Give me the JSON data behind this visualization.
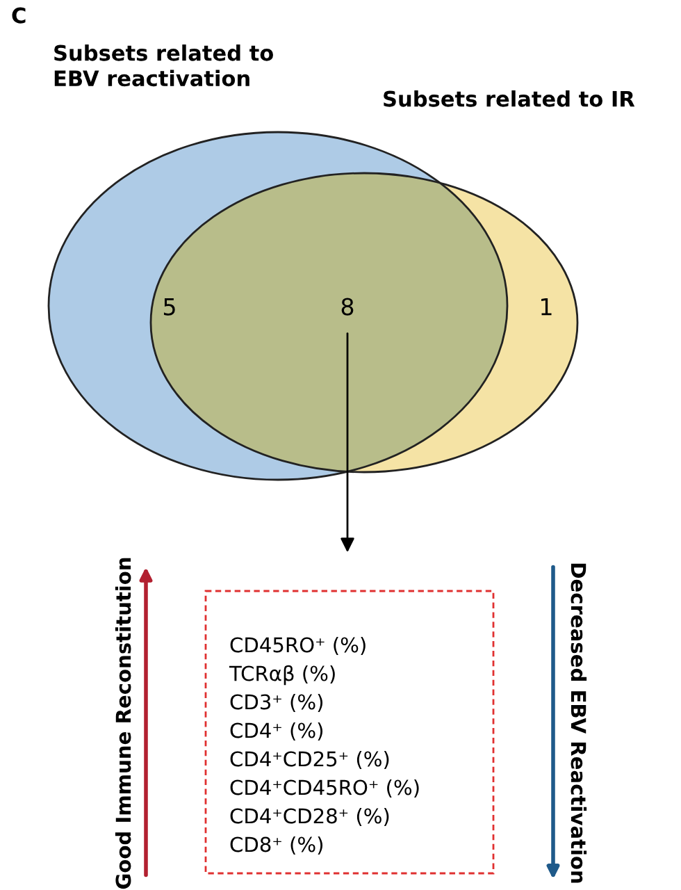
{
  "chart_data": {
    "type": "other",
    "title": "C",
    "categories": [
      null,
      null,
      null
    ],
    "colors": [
      "#aecbe6",
      "#b8bd8a",
      "#f5e3a5"
    ],
    "values": [
      5,
      8,
      1
    ],
    "data_labels": true,
    "annotations": [
      "Subsets related to\nEBV reactivation",
      "Subsets related to IR",
      "CD45RO⁺ (%)",
      "TCRαβ (%)",
      "CD3⁺ (%)",
      "CD4⁺ (%)",
      "CD4⁺CD25⁺ (%)",
      "CD4⁺CD45RO⁺ (%)",
      "CD4⁺CD28⁺ (%)",
      "CD8⁺ (%)",
      "Good Immune Reconstitution",
      "Decreased EBV Reactivation"
    ]
  }
}
